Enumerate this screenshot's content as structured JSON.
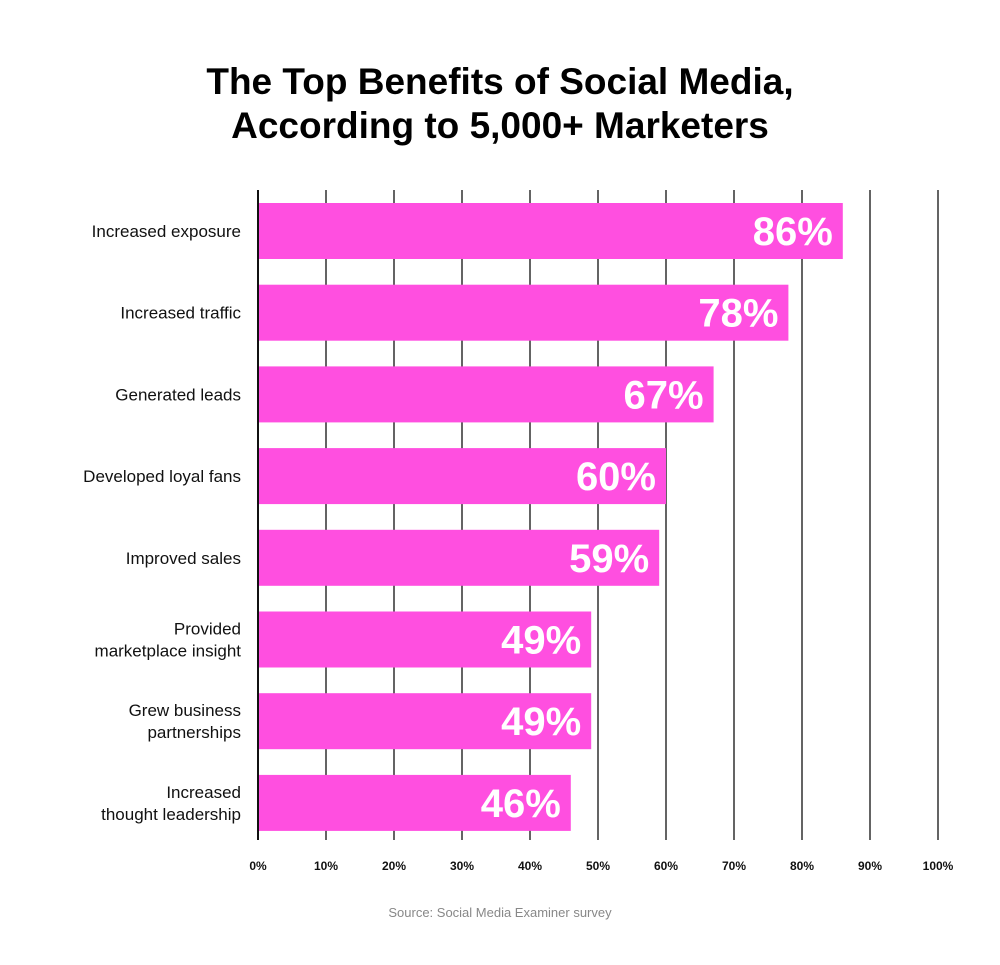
{
  "chart_data": {
    "type": "bar",
    "orientation": "horizontal",
    "title_lines": [
      "The Top Benefits of Social Media,",
      "According to 5,000+ Marketers"
    ],
    "categories": [
      [
        "Increased exposure"
      ],
      [
        "Increased traffic"
      ],
      [
        "Generated leads"
      ],
      [
        "Developed loyal fans"
      ],
      [
        "Improved sales"
      ],
      [
        "Provided",
        "marketplace insight"
      ],
      [
        "Grew business",
        "partnerships"
      ],
      [
        "Increased",
        "thought leadership"
      ]
    ],
    "values": [
      86,
      78,
      67,
      60,
      59,
      49,
      49,
      46
    ],
    "data_labels": [
      "86%",
      "78%",
      "67%",
      "60%",
      "59%",
      "49%",
      "49%",
      "46%"
    ],
    "xlim": [
      0,
      100
    ],
    "xticks": [
      "0%",
      "10%",
      "20%",
      "30%",
      "40%",
      "50%",
      "60%",
      "70%",
      "80%",
      "90%",
      "100%"
    ],
    "grid": "vertical",
    "bar_color": "#ff4fe0",
    "source": "Source: Social Media Examiner survey"
  }
}
